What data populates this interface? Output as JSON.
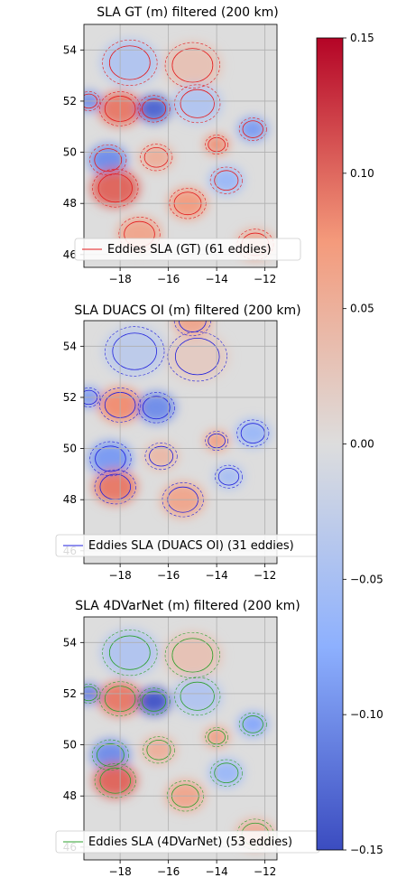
{
  "chart_data": [
    {
      "type": "heatmap",
      "title": "SLA GT (m) filtered (200 km)",
      "xlabel": "",
      "ylabel": "",
      "xlim": [
        -19.5,
        -11.5
      ],
      "ylim": [
        45.5,
        55
      ],
      "xticks": [
        -18,
        -16,
        -14,
        -12
      ],
      "yticks": [
        46,
        48,
        50,
        52,
        54
      ],
      "grid": true,
      "legend": {
        "label": "Eddies SLA (GT) (61 eddies)",
        "color": "#e41a1c",
        "placement": "lower-center"
      },
      "contour_color": "#e41a1c",
      "features": [
        {
          "lon": -18.0,
          "lat": 51.7,
          "sla": 0.09,
          "r": 0.9
        },
        {
          "lon": -16.6,
          "lat": 51.7,
          "sla": -0.13,
          "r": 0.7
        },
        {
          "lon": -18.5,
          "lat": 49.7,
          "sla": -0.1,
          "r": 0.8
        },
        {
          "lon": -18.2,
          "lat": 48.6,
          "sla": 0.1,
          "r": 1.0
        },
        {
          "lon": -15.2,
          "lat": 48.0,
          "sla": 0.07,
          "r": 0.8
        },
        {
          "lon": -14.0,
          "lat": 50.3,
          "sla": 0.08,
          "r": 0.5
        },
        {
          "lon": -12.5,
          "lat": 50.9,
          "sla": -0.09,
          "r": 0.6
        },
        {
          "lon": -13.6,
          "lat": 48.9,
          "sla": -0.06,
          "r": 0.7
        },
        {
          "lon": -19.3,
          "lat": 52.0,
          "sla": -0.1,
          "r": 0.5
        },
        {
          "lon": -17.6,
          "lat": 53.5,
          "sla": -0.04,
          "r": 1.2
        },
        {
          "lon": -15.0,
          "lat": 53.4,
          "sla": 0.03,
          "r": 1.2
        },
        {
          "lon": -16.5,
          "lat": 49.8,
          "sla": 0.05,
          "r": 0.7
        },
        {
          "lon": -14.8,
          "lat": 51.9,
          "sla": -0.04,
          "r": 1.0
        },
        {
          "lon": -12.4,
          "lat": 46.4,
          "sla": 0.05,
          "r": 0.8
        },
        {
          "lon": -17.2,
          "lat": 46.8,
          "sla": 0.06,
          "r": 0.9
        }
      ]
    },
    {
      "type": "heatmap",
      "title": "SLA DUACS OI (m) filtered (200 km)",
      "xlabel": "",
      "ylabel": "",
      "xlim": [
        -19.5,
        -11.5
      ],
      "ylim": [
        45.5,
        55
      ],
      "xticks": [
        -18,
        -16,
        -14,
        -12
      ],
      "yticks": [
        46,
        48,
        50,
        52,
        54
      ],
      "grid": true,
      "legend": {
        "label": "Eddies SLA (DUACS OI) (31 eddies)",
        "color": "#1f1fdd",
        "placement": "lower-center"
      },
      "contour_color": "#1f1fdd",
      "features": [
        {
          "lon": -18.0,
          "lat": 51.7,
          "sla": 0.08,
          "r": 0.9
        },
        {
          "lon": -16.5,
          "lat": 51.6,
          "sla": -0.1,
          "r": 0.8
        },
        {
          "lon": -18.4,
          "lat": 49.6,
          "sla": -0.09,
          "r": 0.9
        },
        {
          "lon": -18.2,
          "lat": 48.5,
          "sla": 0.09,
          "r": 0.9
        },
        {
          "lon": -15.4,
          "lat": 48.0,
          "sla": 0.06,
          "r": 0.9
        },
        {
          "lon": -14.0,
          "lat": 50.3,
          "sla": 0.07,
          "r": 0.5
        },
        {
          "lon": -12.5,
          "lat": 50.6,
          "sla": -0.06,
          "r": 0.7
        },
        {
          "lon": -13.5,
          "lat": 48.9,
          "sla": -0.05,
          "r": 0.6
        },
        {
          "lon": -19.3,
          "lat": 52.0,
          "sla": -0.09,
          "r": 0.5
        },
        {
          "lon": -17.4,
          "lat": 53.8,
          "sla": -0.03,
          "r": 1.3
        },
        {
          "lon": -14.8,
          "lat": 53.6,
          "sla": 0.02,
          "r": 1.3
        },
        {
          "lon": -16.3,
          "lat": 49.7,
          "sla": 0.04,
          "r": 0.7
        },
        {
          "lon": -15.0,
          "lat": 55.0,
          "sla": 0.06,
          "r": 0.8
        }
      ]
    },
    {
      "type": "heatmap",
      "title": "SLA 4DVarNet (m) filtered (200 km)",
      "xlabel": "",
      "ylabel": "",
      "xlim": [
        -19.5,
        -11.5
      ],
      "ylim": [
        45.5,
        55
      ],
      "xticks": [
        -18,
        -16,
        -14,
        -12
      ],
      "yticks": [
        46,
        48,
        50,
        52,
        54
      ],
      "grid": true,
      "legend": {
        "label": "Eddies SLA (4DVarNet) (53 eddies)",
        "color": "#2ca02c",
        "placement": "lower-center"
      },
      "contour_color": "#2ca02c",
      "features": [
        {
          "lon": -18.0,
          "lat": 51.8,
          "sla": 0.09,
          "r": 0.9
        },
        {
          "lon": -16.6,
          "lat": 51.7,
          "sla": -0.14,
          "r": 0.7
        },
        {
          "lon": -18.4,
          "lat": 49.6,
          "sla": -0.1,
          "r": 0.8
        },
        {
          "lon": -18.2,
          "lat": 48.6,
          "sla": 0.1,
          "r": 0.9
        },
        {
          "lon": -15.3,
          "lat": 48.0,
          "sla": 0.06,
          "r": 0.8
        },
        {
          "lon": -14.0,
          "lat": 50.3,
          "sla": 0.07,
          "r": 0.5
        },
        {
          "lon": -12.5,
          "lat": 50.8,
          "sla": -0.08,
          "r": 0.6
        },
        {
          "lon": -13.6,
          "lat": 48.9,
          "sla": -0.06,
          "r": 0.7
        },
        {
          "lon": -19.3,
          "lat": 52.0,
          "sla": -0.11,
          "r": 0.5
        },
        {
          "lon": -17.6,
          "lat": 53.6,
          "sla": -0.04,
          "r": 1.2
        },
        {
          "lon": -15.0,
          "lat": 53.5,
          "sla": 0.03,
          "r": 1.2
        },
        {
          "lon": -16.4,
          "lat": 49.8,
          "sla": 0.05,
          "r": 0.7
        },
        {
          "lon": -14.8,
          "lat": 51.9,
          "sla": -0.04,
          "r": 1.0
        },
        {
          "lon": -12.4,
          "lat": 46.5,
          "sla": 0.05,
          "r": 0.8
        }
      ]
    }
  ],
  "colorbar": {
    "cmap": "coolwarm",
    "min": -0.15,
    "max": 0.15,
    "ticks": [
      -0.15,
      -0.1,
      -0.05,
      0.0,
      0.05,
      0.1,
      0.15
    ],
    "tick_labels": [
      "−0.15",
      "−0.10",
      "−0.05",
      "0.00",
      "0.05",
      "0.10",
      "0.15"
    ]
  }
}
